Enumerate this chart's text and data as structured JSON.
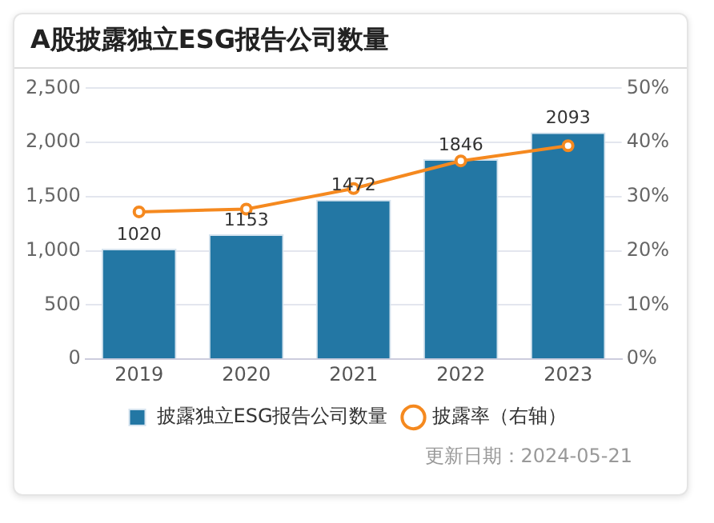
{
  "chart_data": {
    "type": "bar",
    "title": "A股披露独立ESG报告公司数量",
    "categories": [
      "2019",
      "2020",
      "2021",
      "2022",
      "2023"
    ],
    "series": [
      {
        "name": "披露独立ESG报告公司数量",
        "color": "#2377a4",
        "values": [
          1020,
          1153,
          1472,
          1846,
          2093
        ],
        "value_labels": [
          "1020",
          "1153",
          "1472",
          "1846",
          "2093"
        ]
      },
      {
        "name": "披露率（右轴）",
        "type": "line",
        "axis": "y2",
        "color": "#f5891f",
        "values": [
          27.2,
          27.7,
          31.5,
          36.6,
          39.4
        ]
      }
    ],
    "ylim": [
      0,
      2500
    ],
    "yticks": [
      0,
      500,
      {
        "value": 1000,
        "label": "1,000"
      },
      {
        "value": 1500,
        "label": "1,500"
      },
      {
        "value": 2000,
        "label": "2,000"
      },
      {
        "value": 2500,
        "label": "2,500"
      }
    ],
    "y2lim": [
      0,
      50
    ],
    "y2ticks": [
      {
        "value": 0,
        "label": "0%"
      },
      {
        "value": 10,
        "label": "10%"
      },
      {
        "value": 20,
        "label": "20%"
      },
      {
        "value": 30,
        "label": "30%"
      },
      {
        "value": 40,
        "label": "40%"
      },
      {
        "value": 50,
        "label": "50%"
      }
    ],
    "grid": "y",
    "legend": "bottom",
    "marker": "circle",
    "line_style": "solid",
    "annotations": [
      "更新日期：2024-05-21"
    ]
  }
}
